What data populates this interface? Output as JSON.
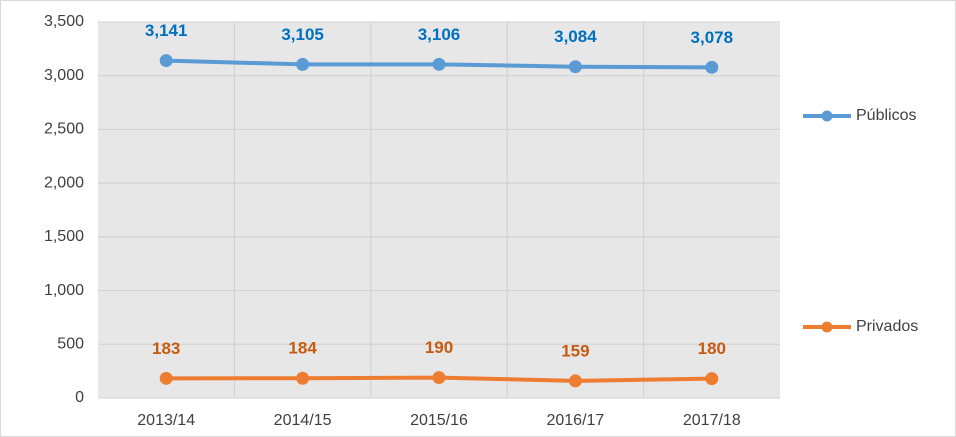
{
  "chart_data": {
    "type": "line",
    "categories": [
      "2013/14",
      "2014/15",
      "2015/16",
      "2016/17",
      "2017/18"
    ],
    "series": [
      {
        "name": "Públicos",
        "color": "#5b9bd5",
        "label_color": "#0070c0",
        "values": [
          3141,
          3105,
          3106,
          3084,
          3078
        ],
        "value_labels": [
          "3,141",
          "3,105",
          "3,106",
          "3,084",
          "3,078"
        ]
      },
      {
        "name": "Privados",
        "color": "#ed7d31",
        "label_color": "#c55a11",
        "values": [
          183,
          184,
          190,
          159,
          180
        ]
      }
    ],
    "ylim": [
      0,
      3500
    ],
    "yticks": [
      0,
      500,
      {
        "value": 1000,
        "label": "1,000"
      },
      {
        "value": 1500,
        "label": "1,500"
      },
      {
        "value": 2000,
        "label": "2,000"
      },
      {
        "value": 2500,
        "label": "2,500"
      },
      {
        "value": 3000,
        "label": "3,000"
      },
      {
        "value": 3500,
        "label": "3,500"
      }
    ],
    "grid": true,
    "legend": "right"
  }
}
